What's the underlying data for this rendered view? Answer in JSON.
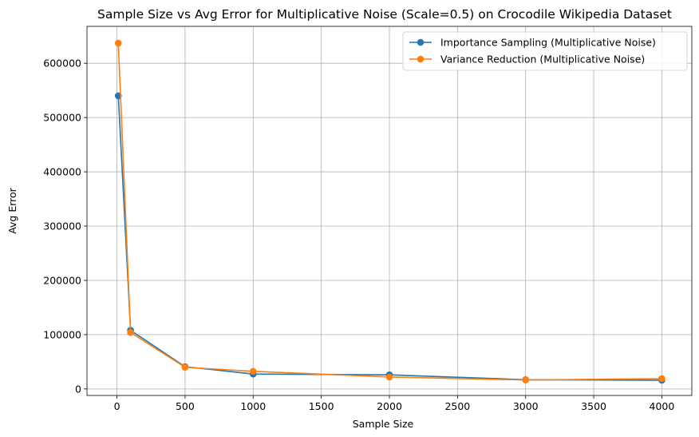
{
  "chart_data": {
    "type": "line",
    "title": "Sample Size vs Avg Error for Multiplicative Noise (Scale=0.5) on Crocodile Wikipedia Dataset",
    "xlabel": "Sample Size",
    "ylabel": "Avg Error",
    "x": [
      10,
      100,
      500,
      1000,
      2000,
      3000,
      4000
    ],
    "xlim": [
      -220,
      4220
    ],
    "ylim": [
      -12000,
      668000
    ],
    "xticks": [
      0,
      500,
      1000,
      1500,
      2000,
      2500,
      3000,
      3500,
      4000
    ],
    "xtick_labels": [
      "0",
      "500",
      "1000",
      "1500",
      "2000",
      "2500",
      "3000",
      "3500",
      "4000"
    ],
    "yticks": [
      0,
      100000,
      200000,
      300000,
      400000,
      500000,
      600000
    ],
    "ytick_labels": [
      "0",
      "100000",
      "200000",
      "300000",
      "400000",
      "500000",
      "600000"
    ],
    "grid": true,
    "legend_position": "top-right",
    "series": [
      {
        "name": "Importance Sampling (Multiplicative Noise)",
        "color": "#1f77b4",
        "values": [
          540000,
          108000,
          41000,
          27500,
          26000,
          17000,
          16000
        ]
      },
      {
        "name": "Variance Reduction (Multiplicative Noise)",
        "color": "#ff7f0e",
        "values": [
          637000,
          104000,
          40000,
          32500,
          22000,
          16500,
          19000
        ]
      }
    ]
  }
}
